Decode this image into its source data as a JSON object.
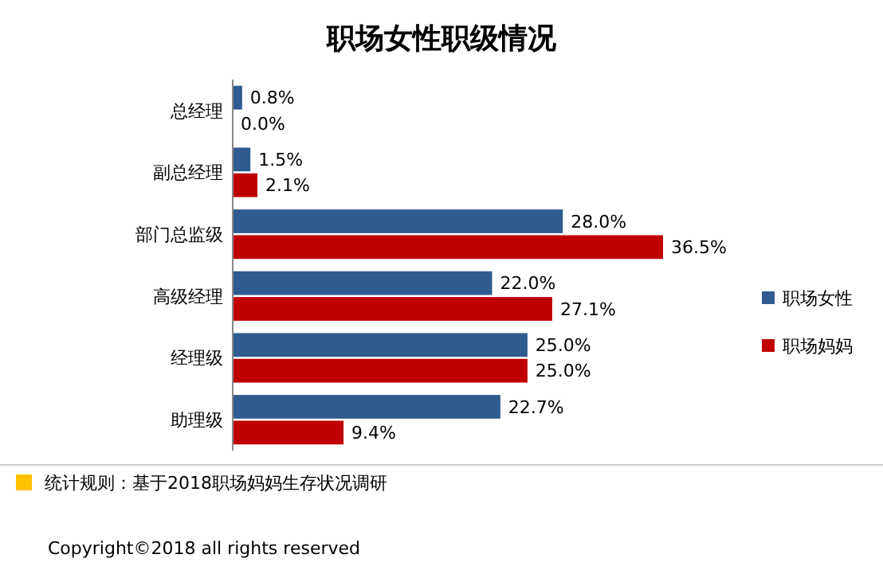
{
  "chart_data": {
    "type": "bar",
    "orientation": "horizontal",
    "title": "职场女性职级情况",
    "categories": [
      "总经理",
      "副总经理",
      "部门总监级",
      "高级经理",
      "经理级",
      "助理级"
    ],
    "series": [
      {
        "name": "职场女性",
        "color": "#2f5b8f",
        "values": [
          0.8,
          1.5,
          28.0,
          22.0,
          25.0,
          22.7
        ],
        "value_labels": [
          "0.8%",
          "1.5%",
          "28.0%",
          "22.0%",
          "25.0%",
          "22.7%"
        ]
      },
      {
        "name": "职场妈妈",
        "color": "#c00000",
        "values": [
          0.0,
          2.1,
          36.5,
          27.1,
          25.0,
          9.4
        ],
        "value_labels": [
          "0.0%",
          "2.1%",
          "36.5%",
          "27.1%",
          "25.0%",
          "9.4%"
        ]
      }
    ],
    "legend": "right",
    "annotations": [
      "统计规则：基于2018职场妈妈生存状况调研",
      "Copyright©2018 all rights reserved"
    ]
  }
}
